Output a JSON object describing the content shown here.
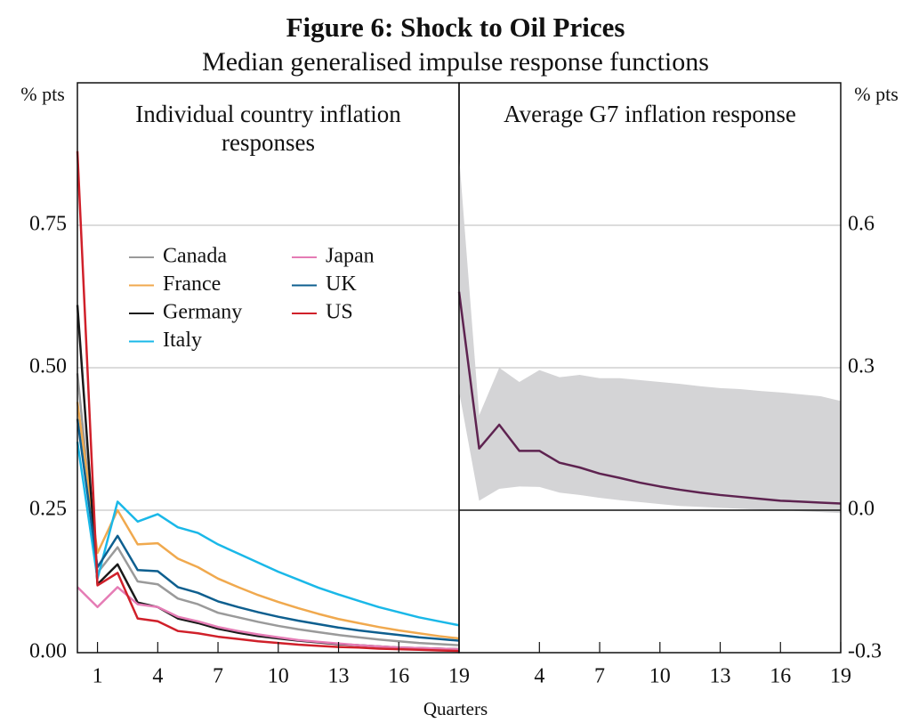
{
  "title": "Figure 6: Shock to Oil Prices",
  "subtitle": "Median generalised impulse response functions",
  "x_label": "Quarters",
  "chart_data": [
    {
      "type": "line",
      "title": "Individual country inflation responses",
      "y_label": "% pts",
      "y_axis_side": "left",
      "x": [
        0,
        1,
        2,
        3,
        4,
        5,
        6,
        7,
        8,
        9,
        10,
        11,
        12,
        13,
        14,
        15,
        16,
        17,
        18,
        19
      ],
      "xlim": [
        0,
        19
      ],
      "xticks": [
        1,
        4,
        7,
        10,
        13,
        16,
        19
      ],
      "ylim": [
        0,
        1
      ],
      "yticks": [
        {
          "value": 0,
          "label": "0.00"
        },
        0.25,
        {
          "value": 0.5,
          "label": "0.50"
        },
        0.75
      ],
      "grid": true,
      "legend": true,
      "series": [
        {
          "name": "Canada",
          "color": "#9a9a9a",
          "values": [
            0.49,
            0.14,
            0.185,
            0.125,
            0.12,
            0.095,
            0.085,
            0.07,
            0.062,
            0.054,
            0.047,
            0.041,
            0.036,
            0.031,
            0.027,
            0.023,
            0.02,
            0.017,
            0.015,
            0.013
          ]
        },
        {
          "name": "France",
          "color": "#f0a94e",
          "values": [
            0.44,
            0.175,
            0.25,
            0.19,
            0.192,
            0.165,
            0.15,
            0.13,
            0.115,
            0.101,
            0.089,
            0.078,
            0.068,
            0.059,
            0.052,
            0.045,
            0.039,
            0.034,
            0.029,
            0.025
          ]
        },
        {
          "name": "Germany",
          "color": "#1a1a1a",
          "values": [
            0.61,
            0.12,
            0.155,
            0.088,
            0.08,
            0.06,
            0.052,
            0.042,
            0.035,
            0.029,
            0.025,
            0.021,
            0.018,
            0.015,
            0.013,
            0.011,
            0.009,
            0.008,
            0.007,
            0.006
          ]
        },
        {
          "name": "Italy",
          "color": "#1ab8e8",
          "values": [
            0.37,
            0.13,
            0.265,
            0.23,
            0.243,
            0.22,
            0.21,
            0.19,
            0.174,
            0.158,
            0.142,
            0.128,
            0.114,
            0.102,
            0.091,
            0.08,
            0.071,
            0.062,
            0.055,
            0.048
          ]
        },
        {
          "name": "Japan",
          "color": "#e57cb5",
          "values": [
            0.115,
            0.08,
            0.115,
            0.085,
            0.08,
            0.063,
            0.055,
            0.045,
            0.038,
            0.032,
            0.027,
            0.022,
            0.019,
            0.016,
            0.013,
            0.011,
            0.009,
            0.008,
            0.007,
            0.006
          ]
        },
        {
          "name": "UK",
          "color": "#0e5f8f",
          "values": [
            0.41,
            0.15,
            0.205,
            0.145,
            0.143,
            0.115,
            0.105,
            0.09,
            0.08,
            0.071,
            0.063,
            0.056,
            0.05,
            0.044,
            0.039,
            0.035,
            0.031,
            0.027,
            0.024,
            0.021
          ]
        },
        {
          "name": "US",
          "color": "#d0202a",
          "values": [
            0.88,
            0.118,
            0.14,
            0.06,
            0.055,
            0.038,
            0.034,
            0.028,
            0.024,
            0.02,
            0.017,
            0.014,
            0.012,
            0.01,
            0.009,
            0.007,
            0.006,
            0.005,
            0.004,
            0.003
          ]
        }
      ]
    },
    {
      "type": "line",
      "title": "Average G7 inflation response",
      "y_label": "% pts",
      "y_axis_side": "right",
      "x": [
        0,
        1,
        2,
        3,
        4,
        5,
        6,
        7,
        8,
        9,
        10,
        11,
        12,
        13,
        14,
        15,
        16,
        17,
        18,
        19
      ],
      "xlim": [
        0,
        19
      ],
      "xticks": [
        4,
        7,
        10,
        13,
        16,
        19
      ],
      "ylim": [
        -0.3,
        0.9
      ],
      "yticks": [
        -0.3,
        {
          "value": 0,
          "label": "0.0"
        },
        0.3,
        0.6
      ],
      "grid": true,
      "zero_line": true,
      "band": {
        "color": "#d4d4d6",
        "upper": [
          0.746,
          0.2,
          0.3,
          0.27,
          0.295,
          0.28,
          0.285,
          0.278,
          0.278,
          0.274,
          0.27,
          0.266,
          0.261,
          0.257,
          0.255,
          0.251,
          0.248,
          0.244,
          0.24,
          0.23
        ],
        "lower": [
          0.25,
          0.02,
          0.045,
          0.05,
          0.049,
          0.037,
          0.032,
          0.026,
          0.021,
          0.017,
          0.013,
          0.009,
          0.007,
          0.005,
          0.003,
          0.001,
          0.0,
          -0.002,
          -0.004,
          -0.006
        ]
      },
      "series": [
        {
          "color": "#5e2350",
          "values": [
            0.46,
            0.13,
            0.18,
            0.125,
            0.125,
            0.1,
            0.09,
            0.077,
            0.068,
            0.058,
            0.05,
            0.043,
            0.037,
            0.032,
            0.028,
            0.024,
            0.02,
            0.018,
            0.016,
            0.014
          ]
        }
      ]
    }
  ]
}
